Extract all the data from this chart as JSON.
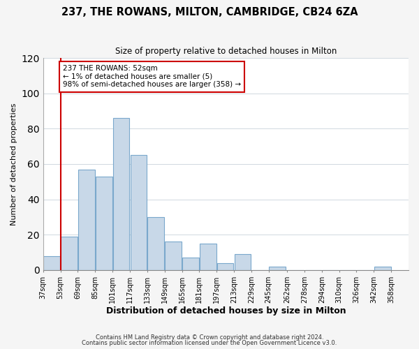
{
  "title": "237, THE ROWANS, MILTON, CAMBRIDGE, CB24 6ZA",
  "subtitle": "Size of property relative to detached houses in Milton",
  "xlabel": "Distribution of detached houses by size in Milton",
  "ylabel": "Number of detached properties",
  "bar_left_edges": [
    37,
    53,
    69,
    85,
    101,
    117,
    133,
    149,
    165,
    181,
    197,
    213,
    229,
    245,
    262,
    278,
    294,
    310,
    326,
    342
  ],
  "bar_widths": [
    16,
    16,
    16,
    16,
    16,
    16,
    16,
    16,
    16,
    16,
    16,
    16,
    16,
    16,
    16,
    16,
    16,
    16,
    16,
    16
  ],
  "bar_heights": [
    8,
    19,
    57,
    53,
    86,
    65,
    30,
    16,
    7,
    15,
    4,
    9,
    0,
    2,
    0,
    0,
    0,
    0,
    0,
    2
  ],
  "bar_color": "#c8d8e8",
  "bar_edgecolor": "#7aa8cc",
  "xlim": [
    37,
    374
  ],
  "ylim": [
    0,
    120
  ],
  "yticks": [
    0,
    20,
    40,
    60,
    80,
    100,
    120
  ],
  "xtick_labels": [
    "37sqm",
    "53sqm",
    "69sqm",
    "85sqm",
    "101sqm",
    "117sqm",
    "133sqm",
    "149sqm",
    "165sqm",
    "181sqm",
    "197sqm",
    "213sqm",
    "229sqm",
    "245sqm",
    "262sqm",
    "278sqm",
    "294sqm",
    "310sqm",
    "326sqm",
    "342sqm",
    "358sqm"
  ],
  "xtick_positions": [
    37,
    53,
    69,
    85,
    101,
    117,
    133,
    149,
    165,
    181,
    197,
    213,
    229,
    245,
    262,
    278,
    294,
    310,
    326,
    342,
    358
  ],
  "marker_x": 53,
  "marker_color": "#cc0000",
  "annotation_lines": [
    "237 THE ROWANS: 52sqm",
    "← 1% of detached houses are smaller (5)",
    "98% of semi-detached houses are larger (358) →"
  ],
  "footer_line1": "Contains HM Land Registry data © Crown copyright and database right 2024.",
  "footer_line2": "Contains public sector information licensed under the Open Government Licence v3.0.",
  "bg_color": "#f5f5f5",
  "plot_bg_color": "#ffffff",
  "grid_color": "#d0d8e0"
}
